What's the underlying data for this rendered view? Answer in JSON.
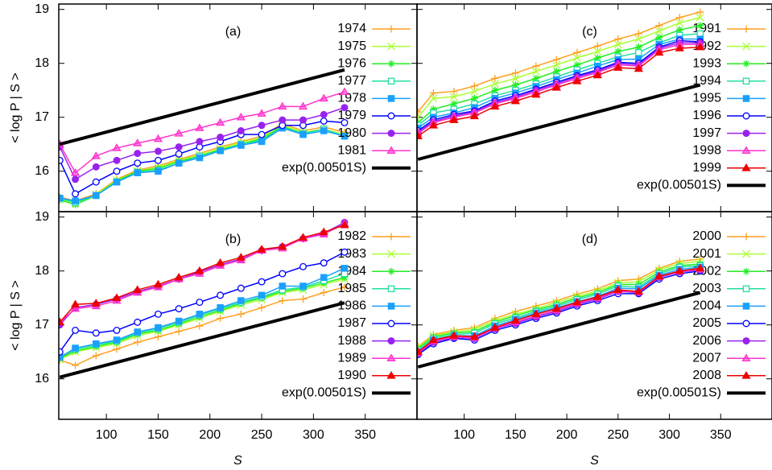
{
  "chart_data": [
    {
      "type": "line",
      "label": "(a)",
      "ylabel": "< log P | S >",
      "x": [
        55,
        70,
        90,
        110,
        130,
        150,
        170,
        190,
        210,
        230,
        250,
        270,
        290,
        310,
        330
      ],
      "xlim": [
        54,
        400
      ],
      "xticks": [
        100,
        150,
        200,
        250,
        300,
        350
      ],
      "ylim": [
        15.25,
        19.1
      ],
      "yticks": [
        16,
        17,
        18,
        19
      ],
      "series": [
        {
          "name": "1974",
          "color": "#ffa020",
          "values": [
            15.52,
            15.45,
            15.58,
            15.85,
            16.02,
            16.1,
            16.22,
            16.33,
            16.45,
            16.55,
            16.65,
            16.88,
            16.75,
            16.82,
            16.72
          ]
        },
        {
          "name": "1975",
          "color": "#aaff33",
          "values": [
            15.48,
            15.4,
            15.57,
            15.83,
            16.0,
            16.07,
            16.2,
            16.3,
            16.42,
            16.53,
            16.62,
            16.85,
            16.72,
            16.78,
            16.68
          ]
        },
        {
          "name": "1976",
          "color": "#22ee22",
          "values": [
            15.47,
            15.38,
            15.55,
            15.82,
            16.0,
            16.05,
            16.18,
            16.28,
            16.4,
            16.5,
            16.6,
            16.83,
            16.7,
            16.78,
            16.65
          ]
        },
        {
          "name": "1977",
          "color": "#22e0a0",
          "values": [
            15.5,
            15.42,
            15.55,
            15.8,
            15.98,
            16.02,
            16.15,
            16.28,
            16.38,
            16.5,
            16.57,
            16.82,
            16.7,
            16.78,
            16.65
          ]
        },
        {
          "name": "1978",
          "color": "#1aa0ff",
          "values": [
            15.5,
            15.45,
            15.55,
            15.8,
            15.97,
            16.0,
            16.15,
            16.25,
            16.38,
            16.48,
            16.55,
            16.8,
            16.68,
            16.75,
            16.65
          ]
        },
        {
          "name": "1979",
          "color": "#0000ff",
          "values": [
            16.2,
            15.58,
            15.8,
            16.0,
            16.15,
            16.2,
            16.32,
            16.45,
            16.55,
            16.68,
            16.68,
            16.85,
            16.85,
            16.93,
            16.9
          ]
        },
        {
          "name": "1980",
          "color": "#9922ee",
          "values": [
            16.45,
            15.85,
            16.08,
            16.2,
            16.33,
            16.37,
            16.45,
            16.55,
            16.63,
            16.75,
            16.85,
            16.95,
            16.95,
            17.05,
            17.18
          ]
        },
        {
          "name": "1981",
          "color": "#ff33cc",
          "values": [
            16.5,
            15.97,
            16.28,
            16.43,
            16.52,
            16.6,
            16.7,
            16.8,
            16.9,
            17.0,
            17.07,
            17.2,
            17.2,
            17.35,
            17.47
          ]
        },
        {
          "name": "exp(0.00501S)",
          "color": "#000000",
          "x": [
            55,
            330
          ],
          "values": [
            16.5,
            17.88
          ]
        }
      ]
    },
    {
      "type": "line",
      "label": "(b)",
      "ylabel": "< log P | S >",
      "xlabel": "S",
      "x": [
        55,
        70,
        90,
        110,
        130,
        150,
        170,
        190,
        210,
        230,
        250,
        270,
        290,
        310,
        330
      ],
      "xlim": [
        54,
        400
      ],
      "xticks": [
        100,
        150,
        200,
        250,
        300,
        350
      ],
      "ylim": [
        15.25,
        19.1
      ],
      "yticks": [
        16,
        17,
        18,
        19
      ],
      "series": [
        {
          "name": "1982",
          "color": "#ffa020",
          "values": [
            16.35,
            16.25,
            16.43,
            16.55,
            16.68,
            16.78,
            16.88,
            16.98,
            17.12,
            17.2,
            17.32,
            17.45,
            17.48,
            17.6,
            17.7
          ]
        },
        {
          "name": "1983",
          "color": "#aaff33",
          "values": [
            16.36,
            16.5,
            16.58,
            16.65,
            16.8,
            16.88,
            17.0,
            17.12,
            17.25,
            17.37,
            17.47,
            17.6,
            17.65,
            17.75,
            17.85
          ]
        },
        {
          "name": "1984",
          "color": "#22ee22",
          "values": [
            16.38,
            16.52,
            16.6,
            16.68,
            16.83,
            16.9,
            17.02,
            17.15,
            17.27,
            17.4,
            17.5,
            17.62,
            17.68,
            17.78,
            17.88
          ]
        },
        {
          "name": "1985",
          "color": "#22e0a0",
          "values": [
            16.4,
            16.55,
            16.63,
            16.7,
            16.85,
            16.93,
            17.05,
            17.18,
            17.3,
            17.42,
            17.52,
            17.65,
            17.7,
            17.82,
            17.95
          ]
        },
        {
          "name": "1986",
          "color": "#1aa0ff",
          "values": [
            16.4,
            16.57,
            16.65,
            16.72,
            16.87,
            16.95,
            17.07,
            17.2,
            17.32,
            17.45,
            17.55,
            17.72,
            17.72,
            17.88,
            18.05
          ]
        },
        {
          "name": "1987",
          "color": "#0000ff",
          "values": [
            16.5,
            16.9,
            16.85,
            16.9,
            17.05,
            17.2,
            17.3,
            17.42,
            17.55,
            17.68,
            17.8,
            17.95,
            18.08,
            18.15,
            18.35
          ]
        },
        {
          "name": "1988",
          "color": "#9922ee",
          "values": [
            17.0,
            17.32,
            17.38,
            17.48,
            17.62,
            17.72,
            17.85,
            17.98,
            18.12,
            18.22,
            18.38,
            18.45,
            18.6,
            18.7,
            18.9
          ]
        },
        {
          "name": "1989",
          "color": "#ff33cc",
          "values": [
            17.05,
            17.3,
            17.35,
            17.45,
            17.6,
            17.7,
            17.85,
            17.95,
            18.1,
            18.2,
            18.38,
            18.42,
            18.6,
            18.68,
            18.88
          ]
        },
        {
          "name": "1990",
          "color": "#ee0000",
          "values": [
            17.05,
            17.38,
            17.4,
            17.5,
            17.65,
            17.75,
            17.88,
            18.0,
            18.15,
            18.25,
            18.4,
            18.45,
            18.62,
            18.72,
            18.85
          ]
        },
        {
          "name": "exp(0.00501S)",
          "color": "#000000",
          "x": [
            55,
            330
          ],
          "values": [
            16.03,
            17.41
          ]
        }
      ]
    },
    {
      "type": "line",
      "label": "(c)",
      "x": [
        55,
        70,
        90,
        110,
        130,
        150,
        170,
        190,
        210,
        230,
        250,
        270,
        290,
        310,
        330
      ],
      "xlim": [
        54,
        400
      ],
      "xticks": [
        100,
        150,
        200,
        250,
        300,
        350
      ],
      "ylim": [
        15.25,
        19.1
      ],
      "yticks": [
        16,
        17,
        18,
        19
      ],
      "series": [
        {
          "name": "1991",
          "color": "#ffa020",
          "values": [
            17.1,
            17.45,
            17.48,
            17.58,
            17.72,
            17.82,
            17.95,
            18.07,
            18.2,
            18.32,
            18.45,
            18.55,
            18.7,
            18.85,
            18.95
          ]
        },
        {
          "name": "1992",
          "color": "#aaff33",
          "values": [
            17.0,
            17.35,
            17.38,
            17.48,
            17.62,
            17.72,
            17.85,
            17.97,
            18.1,
            18.22,
            18.35,
            18.45,
            18.6,
            18.75,
            18.85
          ]
        },
        {
          "name": "1993",
          "color": "#22ee22",
          "values": [
            16.9,
            17.15,
            17.25,
            17.35,
            17.5,
            17.6,
            17.72,
            17.85,
            17.97,
            18.1,
            18.22,
            18.3,
            18.48,
            18.62,
            18.7
          ]
        },
        {
          "name": "1994",
          "color": "#22e0a0",
          "values": [
            16.85,
            17.08,
            17.15,
            17.25,
            17.4,
            17.5,
            17.62,
            17.75,
            17.88,
            18.0,
            18.12,
            18.2,
            18.38,
            18.52,
            18.55
          ]
        },
        {
          "name": "1995",
          "color": "#1aa0ff",
          "values": [
            16.8,
            17.0,
            17.08,
            17.18,
            17.35,
            17.45,
            17.57,
            17.7,
            17.82,
            17.95,
            18.07,
            18.08,
            18.35,
            18.45,
            18.45
          ]
        },
        {
          "name": "1996",
          "color": "#0000ff",
          "values": [
            16.75,
            16.95,
            17.05,
            17.12,
            17.3,
            17.4,
            17.52,
            17.65,
            17.77,
            17.88,
            18.02,
            18.0,
            18.3,
            18.42,
            18.4
          ]
        },
        {
          "name": "1997",
          "color": "#9922ee",
          "values": [
            16.72,
            16.92,
            17.02,
            17.1,
            17.27,
            17.37,
            17.5,
            17.62,
            17.75,
            17.85,
            18.0,
            17.97,
            18.28,
            18.38,
            18.38
          ]
        },
        {
          "name": "1998",
          "color": "#ff33cc",
          "values": [
            16.7,
            16.9,
            17.0,
            17.08,
            17.25,
            17.35,
            17.47,
            17.6,
            17.72,
            17.83,
            17.97,
            17.95,
            18.25,
            18.35,
            18.35
          ]
        },
        {
          "name": "1999",
          "color": "#ee0000",
          "values": [
            16.65,
            16.85,
            16.95,
            17.02,
            17.2,
            17.3,
            17.42,
            17.55,
            17.67,
            17.78,
            17.92,
            17.9,
            18.2,
            18.28,
            18.3
          ]
        },
        {
          "name": "exp(0.00501S)",
          "color": "#000000",
          "x": [
            55,
            330
          ],
          "values": [
            16.22,
            17.6
          ]
        }
      ]
    },
    {
      "type": "line",
      "label": "(d)",
      "xlabel": "S",
      "x": [
        55,
        70,
        90,
        110,
        130,
        150,
        170,
        190,
        210,
        230,
        250,
        270,
        290,
        310,
        330
      ],
      "xlim": [
        54,
        400
      ],
      "xticks": [
        100,
        150,
        200,
        250,
        300,
        350
      ],
      "ylim": [
        15.25,
        19.1
      ],
      "yticks": [
        16,
        17,
        18,
        19
      ],
      "series": [
        {
          "name": "2000",
          "color": "#ffa020",
          "values": [
            16.6,
            16.82,
            16.9,
            16.95,
            17.12,
            17.25,
            17.35,
            17.45,
            17.57,
            17.67,
            17.82,
            17.85,
            18.05,
            18.18,
            18.22
          ]
        },
        {
          "name": "2001",
          "color": "#aaff33",
          "values": [
            16.58,
            16.8,
            16.87,
            16.92,
            17.08,
            17.2,
            17.3,
            17.42,
            17.53,
            17.63,
            17.78,
            17.8,
            18.02,
            18.14,
            18.18
          ]
        },
        {
          "name": "2002",
          "color": "#22ee22",
          "values": [
            16.56,
            16.78,
            16.85,
            16.88,
            17.05,
            17.17,
            17.28,
            17.38,
            17.5,
            17.6,
            17.75,
            17.75,
            17.98,
            18.1,
            18.13
          ]
        },
        {
          "name": "2003",
          "color": "#22e0a0",
          "values": [
            16.53,
            16.75,
            16.82,
            16.85,
            17.02,
            17.13,
            17.25,
            17.35,
            17.47,
            17.57,
            17.72,
            17.7,
            17.95,
            18.07,
            18.1
          ]
        },
        {
          "name": "2004",
          "color": "#1aa0ff",
          "values": [
            16.5,
            16.72,
            16.8,
            16.8,
            16.98,
            17.1,
            17.22,
            17.32,
            17.43,
            17.53,
            17.68,
            17.67,
            17.92,
            18.03,
            18.07
          ]
        },
        {
          "name": "2005",
          "color": "#0000ff",
          "values": [
            16.45,
            16.65,
            16.75,
            16.72,
            16.9,
            17.0,
            17.12,
            17.22,
            17.35,
            17.45,
            17.58,
            17.58,
            17.85,
            17.95,
            18.0
          ]
        },
        {
          "name": "2006",
          "color": "#9922ee",
          "values": [
            16.47,
            16.68,
            16.77,
            16.75,
            16.93,
            17.03,
            17.15,
            17.25,
            17.38,
            17.48,
            17.62,
            17.6,
            17.88,
            17.98,
            18.02
          ]
        },
        {
          "name": "2007",
          "color": "#ff33cc",
          "values": [
            16.48,
            16.7,
            16.78,
            16.76,
            16.94,
            17.05,
            17.17,
            17.27,
            17.4,
            17.5,
            17.63,
            17.61,
            17.89,
            17.99,
            18.03
          ]
        },
        {
          "name": "2008",
          "color": "#ee0000",
          "values": [
            16.5,
            16.72,
            16.8,
            16.78,
            16.95,
            17.08,
            17.2,
            17.3,
            17.42,
            17.52,
            17.65,
            17.62,
            17.9,
            18.0,
            18.05
          ]
        },
        {
          "name": "exp(0.00501S)",
          "color": "#000000",
          "x": [
            55,
            330
          ],
          "values": [
            16.22,
            17.6
          ]
        }
      ]
    }
  ]
}
